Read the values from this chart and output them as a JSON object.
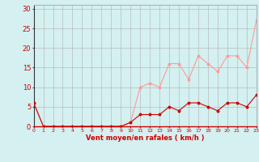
{
  "x": [
    0,
    1,
    2,
    3,
    4,
    5,
    6,
    7,
    8,
    9,
    10,
    11,
    12,
    13,
    14,
    15,
    16,
    17,
    18,
    19,
    20,
    21,
    22,
    23
  ],
  "wind_avg": [
    6,
    0,
    0,
    0,
    0,
    0,
    0,
    0,
    0,
    0,
    1,
    3,
    3,
    3,
    5,
    4,
    6,
    6,
    5,
    4,
    6,
    6,
    5,
    8
  ],
  "wind_gust": [
    6,
    0,
    0,
    0,
    0,
    0,
    0,
    0,
    0,
    0,
    1,
    10,
    11,
    10,
    16,
    16,
    12,
    18,
    16,
    14,
    18,
    18,
    15,
    27
  ],
  "avg_color": "#cc0000",
  "gust_color": "#ff9999",
  "bg_color": "#d4f0f0",
  "grid_color": "#b0b0b0",
  "xlabel": "Vent moyen/en rafales ( km/h )",
  "xlabel_color": "#cc0000",
  "ylabel_ticks": [
    0,
    5,
    10,
    15,
    20,
    25,
    30
  ],
  "ylim": [
    0,
    31
  ],
  "xlim": [
    0,
    23
  ],
  "tick_color": "#cc0000"
}
